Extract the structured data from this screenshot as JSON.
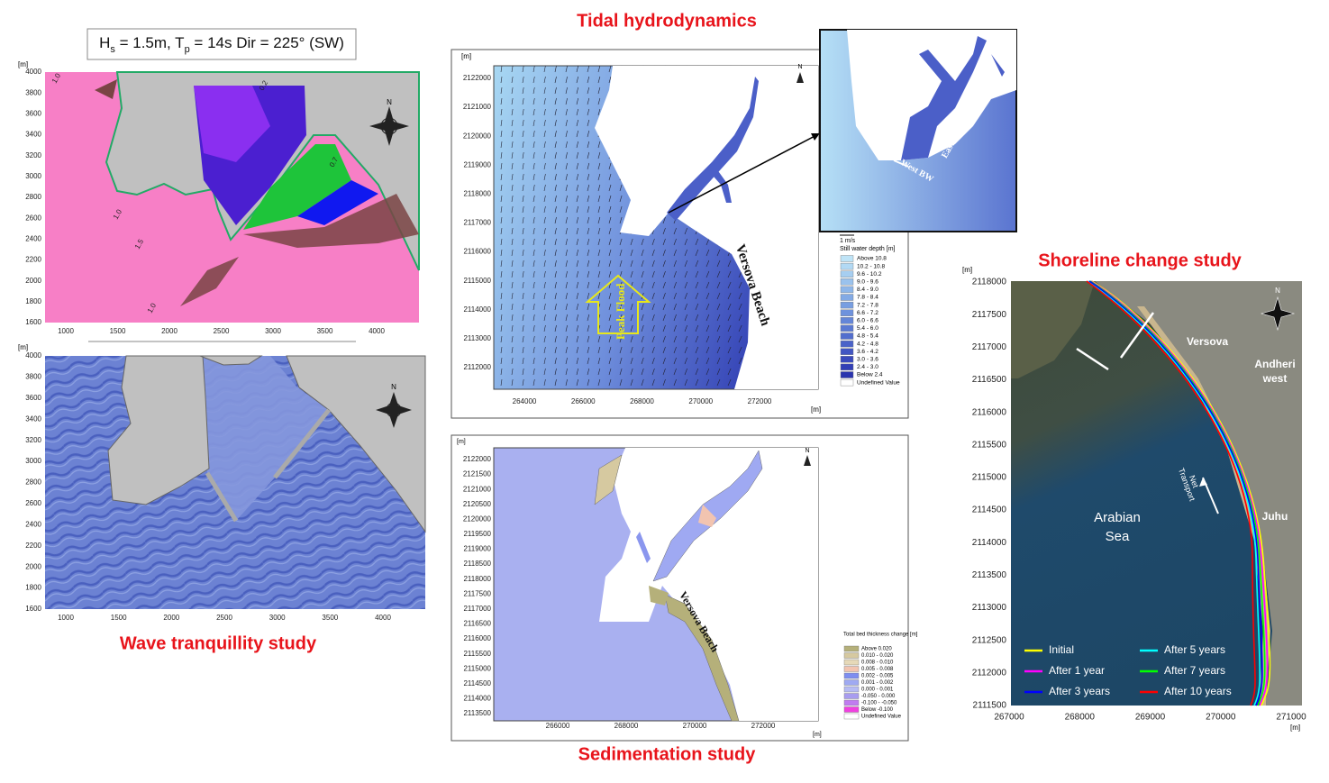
{
  "wave_panel": {
    "conditions": [
      "H",
      "s",
      " = 1.5m, T",
      "p",
      " = 14s Dir = 225° (SW)"
    ],
    "unit": "[m]",
    "compass_label": "N",
    "top_map": {
      "yticks": [
        1600,
        1800,
        2000,
        2200,
        2400,
        2600,
        2800,
        3000,
        3200,
        3400,
        3600,
        3800,
        4000
      ],
      "xticks": [
        1000,
        1500,
        2000,
        2500,
        3000,
        3500,
        4000
      ],
      "contour_labels": [
        "1.0",
        "1.5",
        "1.0",
        "0.2",
        "0.7",
        "1.0"
      ]
    },
    "bottom_map": {
      "yticks": [
        1600,
        1800,
        2000,
        2200,
        2400,
        2600,
        2800,
        3000,
        3200,
        3400,
        3600,
        3800,
        4000
      ],
      "xticks": [
        1000,
        1500,
        2000,
        2500,
        3000,
        3500,
        4000
      ]
    },
    "caption": "Wave tranquillity study"
  },
  "tidal_panel": {
    "title": "Tidal hydrodynamics",
    "unit": "[m]",
    "compass_label": "N",
    "yticks": [
      2112000,
      2113000,
      2114000,
      2115000,
      2116000,
      2117000,
      2118000,
      2119000,
      2120000,
      2121000,
      2122000
    ],
    "xticks": [
      264000,
      266000,
      268000,
      270000,
      272000
    ],
    "beach_label": "Versova Beach",
    "arrow_label": "Peak Flood",
    "inset_labels": [
      "West BW",
      "East BW"
    ],
    "legend": {
      "scale": "1 m/s",
      "title": "Still water depth [m]",
      "entries": [
        {
          "label": "Above 10.8",
          "color": "#bfe4f7"
        },
        {
          "label": "10.2 - 10.8",
          "color": "#b2d9f4"
        },
        {
          "label": "9.6 - 10.2",
          "color": "#a6cef1"
        },
        {
          "label": "9.0 - 9.6",
          "color": "#9ac2ed"
        },
        {
          "label": "8.4 - 9.0",
          "color": "#8eb6e9"
        },
        {
          "label": "7.8 - 8.4",
          "color": "#83aae5"
        },
        {
          "label": "7.2 - 7.8",
          "color": "#789ee1"
        },
        {
          "label": "6.6 - 7.2",
          "color": "#6e92dd"
        },
        {
          "label": "6.0 - 6.6",
          "color": "#6486d8"
        },
        {
          "label": "5.4 - 6.0",
          "color": "#5b7ad3"
        },
        {
          "label": "4.8 - 5.4",
          "color": "#526ece"
        },
        {
          "label": "4.2 - 4.8",
          "color": "#4a62c9"
        },
        {
          "label": "3.6 - 4.2",
          "color": "#4256c3"
        },
        {
          "label": "3.0 - 3.6",
          "color": "#3a4abd"
        },
        {
          "label": "2.4 - 3.0",
          "color": "#323fb6"
        },
        {
          "label": "Below 2.4",
          "color": "#2a34ae"
        },
        {
          "label": "Undefined Value",
          "color": "#ffffff"
        }
      ]
    }
  },
  "sediment_panel": {
    "title": "Sedimentation study",
    "unit": "[m]",
    "compass_label": "N",
    "yticks": [
      2113500,
      2114000,
      2114500,
      2115000,
      2115500,
      2116000,
      2116500,
      2117000,
      2117500,
      2118000,
      2118500,
      2119000,
      2119500,
      2120000,
      2120500,
      2121000,
      2121500,
      2122000
    ],
    "xticks": [
      266000,
      268000,
      270000,
      272000
    ],
    "beach_label": "Versova Beach",
    "legend": {
      "title": "Total bed thickness change [m]",
      "entries": [
        {
          "label": "Above  0.020",
          "color": "#b5b07a"
        },
        {
          "label": "0.010 -  0.020",
          "color": "#d6c9a0"
        },
        {
          "label": "0.008 -  0.010",
          "color": "#e6d9b8"
        },
        {
          "label": "0.005 -  0.008",
          "color": "#f2c4b0"
        },
        {
          "label": "0.002 -  0.005",
          "color": "#7e8ef0"
        },
        {
          "label": "0.001 -  0.002",
          "color": "#9fa9f2"
        },
        {
          "label": "0.000 -  0.001",
          "color": "#b6bbf4"
        },
        {
          "label": "-0.050 -  0.000",
          "color": "#a89cf0"
        },
        {
          "label": "-0.100 - -0.050",
          "color": "#c07cf0"
        },
        {
          "label": "Below  -0.100",
          "color": "#f040e0"
        },
        {
          "label": "Undefined Value",
          "color": "#ffffff"
        }
      ]
    }
  },
  "shoreline_panel": {
    "title": "Shoreline change study",
    "unit": "[m]",
    "compass_label": "N",
    "yticks": [
      2111500,
      2112000,
      2112500,
      2113000,
      2113500,
      2114000,
      2114500,
      2115000,
      2115500,
      2116000,
      2116500,
      2117000,
      2117500,
      2118000
    ],
    "xticks": [
      267000,
      268000,
      269000,
      270000,
      271000
    ],
    "places": [
      "Versova",
      "Andheri",
      "west",
      "Juhu"
    ],
    "sea_label": [
      "Arabian",
      "Sea"
    ],
    "transport_label": [
      "Net",
      "Transport"
    ],
    "legend": [
      {
        "name": "Initial",
        "color": "#ffff00"
      },
      {
        "name": "After 5 years",
        "color": "#00ffff"
      },
      {
        "name": "After 1 year",
        "color": "#ff00ff"
      },
      {
        "name": "After 7 years",
        "color": "#00ff00"
      },
      {
        "name": "After 3 years",
        "color": "#0000ff"
      },
      {
        "name": "After 10 years",
        "color": "#ff0000"
      }
    ]
  }
}
